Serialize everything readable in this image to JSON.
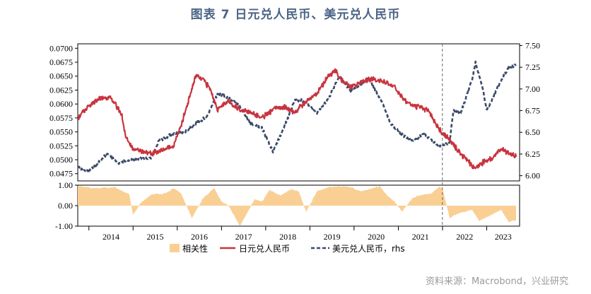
{
  "title": "图表 7    日元兑人民币、美元兑人民币",
  "source": "资料来源：Macrobond，兴业研究",
  "colors": {
    "jpy": "#c8343f",
    "usd": "#3a4a6a",
    "corr": "#f9cf94",
    "divider": "#666666"
  },
  "chart_data": [
    {
      "type": "line",
      "panel": "top",
      "x_axis": {
        "type": "date",
        "range": [
          "2013-10-01",
          "2023-09-30"
        ],
        "tick_labels": [
          "2014",
          "2015",
          "2016",
          "2017",
          "2018",
          "2019",
          "2020",
          "2021",
          "2022",
          "2023"
        ]
      },
      "y_left": {
        "range": [
          0.0462,
          0.0708
        ],
        "tick_labels": [
          "0.0700",
          "0.0675",
          "0.0650",
          "0.0625",
          "0.0600",
          "0.0575",
          "0.0550",
          "0.0525",
          "0.0500",
          "0.0475"
        ]
      },
      "y_right": {
        "range": [
          5.94,
          7.52
        ],
        "tick_labels": [
          "7.50",
          "7.25",
          "7.00",
          "6.75",
          "6.50",
          "6.25",
          "6.00"
        ]
      },
      "divider_date": "2021-12-31",
      "series": [
        {
          "name": "日元兑人民币",
          "axis": "left",
          "x": [
            "2013-10",
            "2014-01",
            "2014-04",
            "2014-07",
            "2014-10",
            "2014-11",
            "2015-01",
            "2015-04",
            "2015-06",
            "2015-08",
            "2015-10",
            "2015-12",
            "2016-02",
            "2016-04",
            "2016-06",
            "2016-08",
            "2016-10",
            "2016-12",
            "2017-03",
            "2017-06",
            "2017-09",
            "2017-12",
            "2018-03",
            "2018-06",
            "2018-09",
            "2018-12",
            "2019-03",
            "2019-06",
            "2019-08",
            "2019-10",
            "2019-12",
            "2020-03",
            "2020-06",
            "2020-09",
            "2020-12",
            "2021-03",
            "2021-06",
            "2021-09",
            "2021-12",
            "2022-03",
            "2022-06",
            "2022-09",
            "2022-10",
            "2022-12",
            "2023-03",
            "2023-05",
            "2023-07",
            "2023-09"
          ],
          "y": [
            0.0575,
            0.0595,
            0.061,
            0.0612,
            0.058,
            0.054,
            0.052,
            0.0515,
            0.051,
            0.0515,
            0.052,
            0.0525,
            0.056,
            0.0605,
            0.065,
            0.0645,
            0.0625,
            0.059,
            0.0605,
            0.059,
            0.0585,
            0.0575,
            0.059,
            0.0595,
            0.0585,
            0.0605,
            0.062,
            0.065,
            0.066,
            0.064,
            0.063,
            0.064,
            0.0645,
            0.064,
            0.063,
            0.0605,
            0.0595,
            0.059,
            0.0555,
            0.0535,
            0.051,
            0.049,
            0.0485,
            0.0495,
            0.0505,
            0.052,
            0.051,
            0.0505
          ]
        },
        {
          "name": "美元兑人民币，rhs",
          "axis": "right",
          "x": [
            "2013-10",
            "2014-01",
            "2014-06",
            "2014-09",
            "2014-12",
            "2015-03",
            "2015-06",
            "2015-08",
            "2015-12",
            "2016-03",
            "2016-06",
            "2016-09",
            "2016-12",
            "2017-03",
            "2017-06",
            "2017-09",
            "2017-12",
            "2018-03",
            "2018-06",
            "2018-09",
            "2018-12",
            "2019-03",
            "2019-06",
            "2019-09",
            "2019-12",
            "2020-03",
            "2020-05",
            "2020-08",
            "2020-11",
            "2021-02",
            "2021-05",
            "2021-08",
            "2021-11",
            "2021-12",
            "2022-01",
            "2022-03",
            "2022-04",
            "2022-06",
            "2022-09",
            "2022-10",
            "2022-12",
            "2023-01",
            "2023-03",
            "2023-05",
            "2023-07",
            "2023-09"
          ],
          "y": [
            6.1,
            6.05,
            6.25,
            6.15,
            6.18,
            6.2,
            6.2,
            6.4,
            6.49,
            6.5,
            6.6,
            6.68,
            6.95,
            6.9,
            6.8,
            6.6,
            6.55,
            6.28,
            6.55,
            6.88,
            6.85,
            6.72,
            6.88,
            7.15,
            6.98,
            7.05,
            7.12,
            6.9,
            6.6,
            6.47,
            6.4,
            6.48,
            6.38,
            6.33,
            6.35,
            6.38,
            6.75,
            6.72,
            7.1,
            7.3,
            7.0,
            6.75,
            6.92,
            7.1,
            7.25,
            7.28
          ]
        }
      ]
    },
    {
      "type": "area",
      "panel": "bottom",
      "y": {
        "range": [
          -1.0,
          1.0
        ],
        "tick_labels": [
          "1.00",
          "0.00",
          "-1.00"
        ]
      },
      "series": [
        {
          "name": "相关性",
          "x": [
            "2013-10",
            "2014-03",
            "2014-08",
            "2014-12",
            "2015-01",
            "2015-03",
            "2015-06",
            "2015-10",
            "2015-12",
            "2016-02",
            "2016-05",
            "2016-08",
            "2016-11",
            "2017-01",
            "2017-03",
            "2017-06",
            "2017-10",
            "2017-12",
            "2018-02",
            "2018-05",
            "2018-08",
            "2018-10",
            "2018-12",
            "2019-03",
            "2019-06",
            "2019-09",
            "2019-12",
            "2020-03",
            "2020-06",
            "2020-08",
            "2020-10",
            "2020-12",
            "2021-02",
            "2021-05",
            "2021-08",
            "2021-10",
            "2021-12",
            "2022-01",
            "2022-03",
            "2022-05",
            "2022-07",
            "2022-09",
            "2022-11",
            "2023-01",
            "2023-03",
            "2023-05",
            "2023-07",
            "2023-09"
          ],
          "y": [
            0.95,
            0.85,
            0.9,
            0.55,
            -0.45,
            0.1,
            0.55,
            0.6,
            0.85,
            0.6,
            -0.6,
            0.35,
            0.85,
            0.2,
            0.0,
            -1.0,
            0.3,
            0.2,
            0.75,
            0.5,
            0.8,
            0.7,
            -0.3,
            0.7,
            0.9,
            0.95,
            0.9,
            0.7,
            0.85,
            0.95,
            0.5,
            0.2,
            -0.3,
            0.4,
            0.55,
            0.6,
            0.9,
            0.85,
            -0.6,
            -0.4,
            -0.3,
            -0.2,
            -0.75,
            -0.55,
            -0.4,
            -0.2,
            -0.8,
            -0.7
          ]
        }
      ]
    }
  ],
  "legend": {
    "corr": "相关性",
    "jpy": "日元兑人民币",
    "usd": "美元兑人民币，rhs"
  }
}
